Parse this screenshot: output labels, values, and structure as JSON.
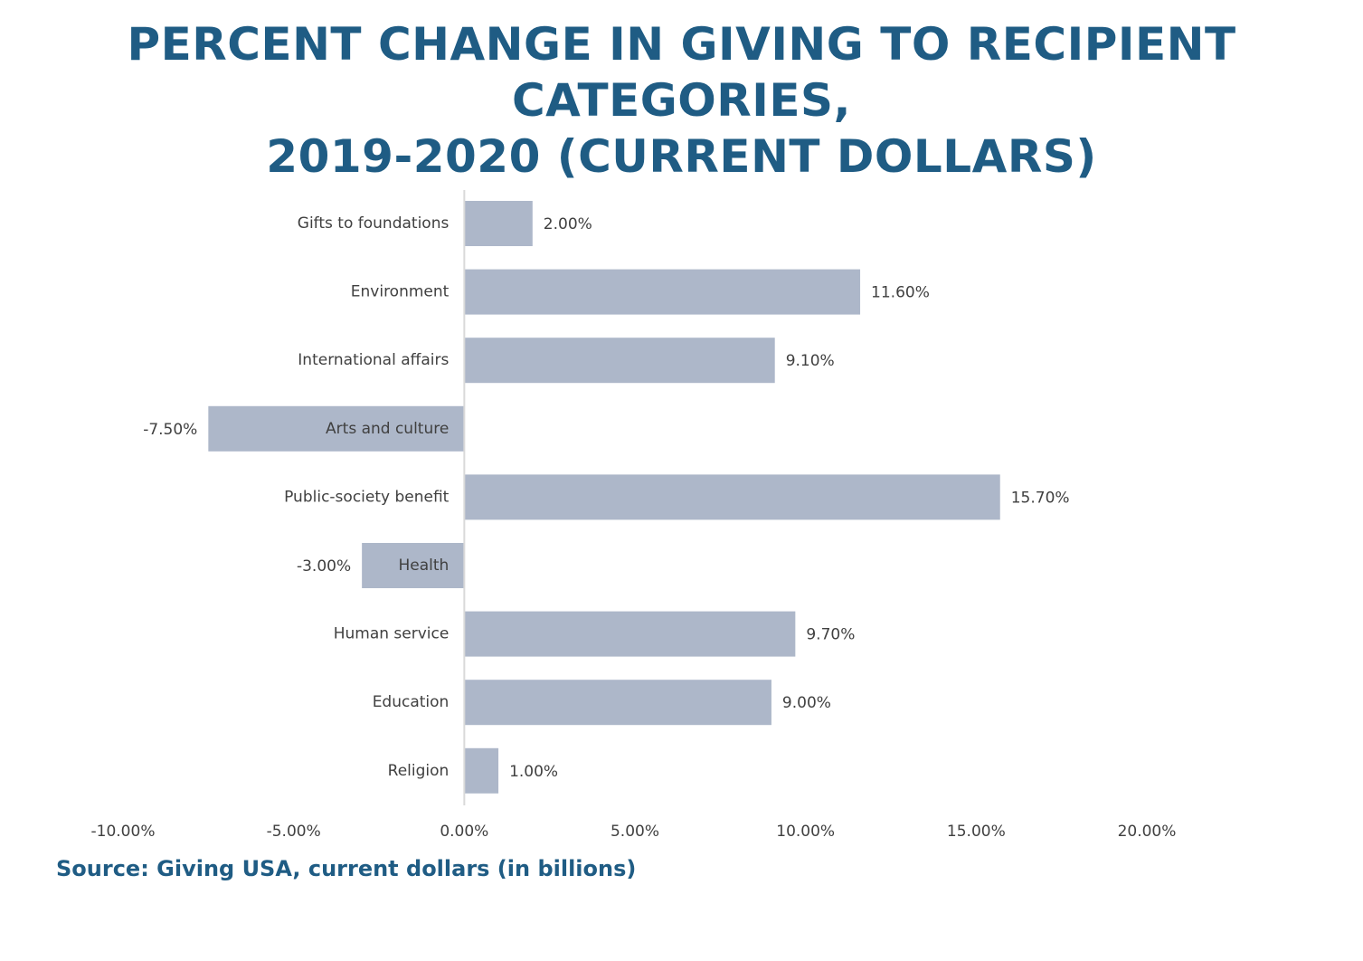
{
  "title_lines": [
    "PERCENT CHANGE IN GIVING TO RECIPIENT CATEGORIES,",
    "2019-2020 (CURRENT DOLLARS)"
  ],
  "source": "Source: Giving USA, current dollars (in billions)",
  "colors": {
    "bar": "#adb7c9",
    "title": "#1f5c84",
    "text": "#404040",
    "axis": "#d9d9d9"
  },
  "chart_data": {
    "type": "bar",
    "orientation": "horizontal",
    "title": "PERCENT CHANGE IN GIVING TO RECIPIENT CATEGORIES, 2019-2020 (CURRENT DOLLARS)",
    "categories": [
      "Gifts to foundations",
      "Environment",
      "International affairs",
      "Arts and culture",
      "Public-society benefit",
      "Health",
      "Human service",
      "Education",
      "Religion"
    ],
    "values": [
      2.0,
      11.6,
      9.1,
      -7.5,
      15.7,
      -3.0,
      9.7,
      9.0,
      1.0
    ],
    "value_labels": [
      "2.00%",
      "11.60%",
      "9.10%",
      "-7.50%",
      "15.70%",
      "-3.00%",
      "9.70%",
      "9.00%",
      "1.00%"
    ],
    "x_ticks": [
      -10,
      -5,
      0,
      5,
      10,
      15,
      20
    ],
    "x_tick_labels": [
      "-10.00%",
      "-5.00%",
      "0.00%",
      "5.00%",
      "10.00%",
      "15.00%",
      "20.00%"
    ],
    "xlim": [
      -10,
      20
    ],
    "xlabel": "",
    "ylabel": "",
    "grid": false,
    "legend": "none"
  }
}
